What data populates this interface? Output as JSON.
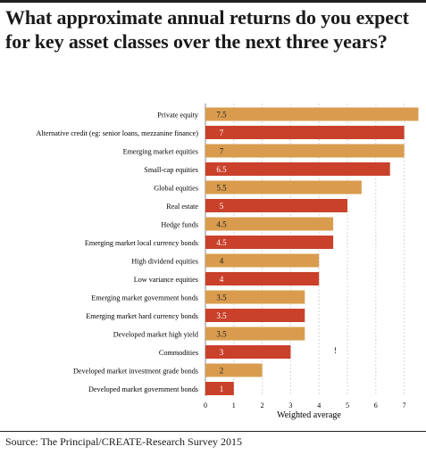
{
  "title": "What approximate annual returns do you expect for key asset classes over the next three years?",
  "source": "Source: The Principal/CREATE-Research Survey 2015",
  "colors": {
    "light": "#d99c4e",
    "dark": "#c9412b"
  },
  "chart_data": {
    "type": "bar",
    "orientation": "horizontal",
    "xlabel": "Weighted average",
    "xlim": [
      0,
      7.5
    ],
    "xticks": [
      "0",
      "1",
      "2",
      "3",
      "4",
      "5",
      "6",
      "7"
    ],
    "grid": true,
    "categories": [
      "Private equity",
      "Alternative credit (eg: senior loans, mezzanine finance)",
      "Emerging market equities",
      "Small-cap equities",
      "Global equities",
      "Real estate",
      "Hedge funds",
      "Emerging market local currency bonds",
      "High dividend equities",
      "Low variance equities",
      "Emerging market government bonds",
      "Emerging market hard currency bonds",
      "Developed market high yield",
      "Commodities",
      "Developed market  investment grade bonds",
      "Developed market government bonds"
    ],
    "values": [
      7.5,
      7,
      7,
      6.5,
      5.5,
      5,
      4.5,
      4.5,
      4,
      4,
      3.5,
      3.5,
      3.5,
      3,
      2,
      1
    ],
    "value_labels": [
      "7.5",
      "7",
      "7",
      "6.5",
      "5.5",
      "5",
      "4.5",
      "4.5",
      "4",
      "4",
      "3.5",
      "3.5",
      "3.5",
      "3",
      "2",
      "1"
    ],
    "bar_colors": [
      "light",
      "dark",
      "light",
      "dark",
      "light",
      "dark",
      "light",
      "dark",
      "light",
      "dark",
      "light",
      "dark",
      "light",
      "dark",
      "light",
      "dark"
    ],
    "annotations": [
      "!"
    ]
  }
}
